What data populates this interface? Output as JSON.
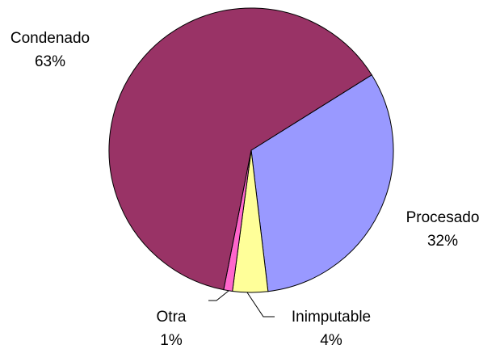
{
  "chart_data": {
    "type": "pie",
    "categories": [
      "Procesado",
      "Inimputable",
      "Otra",
      "Condenado"
    ],
    "values": [
      32,
      4,
      1,
      63
    ],
    "value_labels": [
      "32%",
      "4%",
      "1%",
      "63%"
    ],
    "colors": [
      "#9999ff",
      "#ffff99",
      "#ff66cc",
      "#993366"
    ]
  }
}
